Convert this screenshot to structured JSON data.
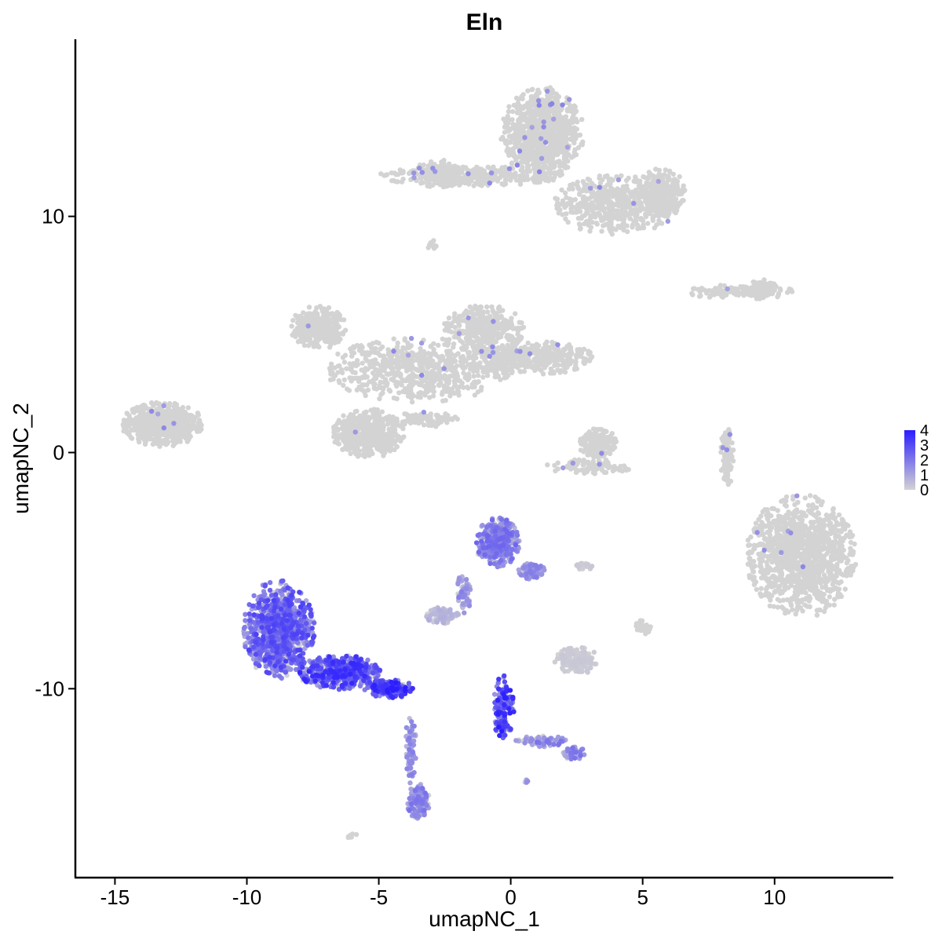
{
  "chart_data": {
    "type": "scatter",
    "title": "Eln",
    "xlabel": "umapNC_1",
    "ylabel": "umapNC_2",
    "xlim": [
      -16.5,
      14.5
    ],
    "ylim": [
      -18.0,
      17.5
    ],
    "x_ticks": [
      -15,
      -10,
      -5,
      0,
      5,
      10
    ],
    "x_tick_labels": [
      "-15",
      "-10",
      "-5",
      "0",
      "5",
      "10"
    ],
    "y_ticks": [
      -10,
      0,
      10
    ],
    "y_tick_labels": [
      "-10",
      "0",
      "10"
    ],
    "grid": false,
    "legend": {
      "placement": "right",
      "type": "colorbar",
      "labels": [
        "4",
        "3",
        "2",
        "1",
        "0"
      ],
      "values": [
        4,
        3,
        2,
        1,
        0
      ],
      "range": [
        0,
        4
      ],
      "low_color": "#d3d3d3",
      "high_color": "#2b1dff"
    },
    "point_color_default": "#d3d3d3",
    "clusters": [
      {
        "cx": 1.2,
        "cy": 13.5,
        "rx": 1.5,
        "ry": 1.9,
        "n": 900,
        "expr": 0.0
      },
      {
        "cx": 4.0,
        "cy": 10.5,
        "rx": 2.3,
        "ry": 1.2,
        "n": 500,
        "expr": 0.0
      },
      {
        "cx": 5.7,
        "cy": 11.0,
        "rx": 0.9,
        "ry": 1.0,
        "n": 250,
        "expr": 0.0
      },
      {
        "cx": -1.5,
        "cy": 11.7,
        "rx": 3.4,
        "ry": 0.4,
        "n": 300,
        "expr": 0.0
      },
      {
        "cx": -2.8,
        "cy": 11.8,
        "rx": 0.8,
        "ry": 0.6,
        "n": 120,
        "expr": 0.0
      },
      {
        "cx": -3.0,
        "cy": 8.8,
        "rx": 0.2,
        "ry": 0.2,
        "n": 10,
        "expr": 0.0
      },
      {
        "cx": 8.7,
        "cy": 6.8,
        "rx": 2.0,
        "ry": 0.3,
        "n": 120,
        "expr": 0.0
      },
      {
        "cx": 9.5,
        "cy": 6.9,
        "rx": 0.6,
        "ry": 0.4,
        "n": 80,
        "expr": 0.0
      },
      {
        "cx": -7.3,
        "cy": 5.3,
        "rx": 1.0,
        "ry": 0.9,
        "n": 300,
        "expr": 0.0
      },
      {
        "cx": -3.5,
        "cy": 3.5,
        "rx": 3.4,
        "ry": 1.3,
        "n": 650,
        "expr": 0.0
      },
      {
        "cx": -1.0,
        "cy": 5.2,
        "rx": 1.5,
        "ry": 1.0,
        "n": 350,
        "expr": 0.0
      },
      {
        "cx": 0.8,
        "cy": 4.0,
        "rx": 2.3,
        "ry": 0.7,
        "n": 400,
        "expr": 0.0
      },
      {
        "cx": -5.4,
        "cy": 0.8,
        "rx": 1.3,
        "ry": 1.0,
        "n": 500,
        "expr": 0.0
      },
      {
        "cx": -3.2,
        "cy": 1.4,
        "rx": 1.2,
        "ry": 0.3,
        "n": 90,
        "expr": 0.0
      },
      {
        "cx": -13.2,
        "cy": 1.2,
        "rx": 1.5,
        "ry": 0.9,
        "n": 550,
        "expr": 0.0
      },
      {
        "cx": 3.3,
        "cy": 0.4,
        "rx": 0.7,
        "ry": 0.6,
        "n": 170,
        "expr": 0.0
      },
      {
        "cx": 3.0,
        "cy": -0.6,
        "rx": 1.6,
        "ry": 0.3,
        "n": 100,
        "expr": 0.0
      },
      {
        "cx": 8.2,
        "cy": -0.2,
        "rx": 0.25,
        "ry": 1.2,
        "n": 80,
        "expr": 0.0
      },
      {
        "cx": 11.0,
        "cy": -4.4,
        "rx": 2.0,
        "ry": 2.5,
        "n": 1100,
        "expr": 0.0
      },
      {
        "cx": -0.5,
        "cy": -3.8,
        "rx": 0.8,
        "ry": 1.0,
        "n": 380,
        "expr": 0.45
      },
      {
        "cx": 0.8,
        "cy": -5.0,
        "rx": 0.5,
        "ry": 0.4,
        "n": 80,
        "expr": 0.35
      },
      {
        "cx": -1.8,
        "cy": -6.0,
        "rx": 0.3,
        "ry": 0.8,
        "n": 60,
        "expr": 0.35
      },
      {
        "cx": -2.6,
        "cy": -6.9,
        "rx": 0.6,
        "ry": 0.35,
        "n": 100,
        "expr": 0.15
      },
      {
        "cx": 2.8,
        "cy": -4.8,
        "rx": 0.4,
        "ry": 0.15,
        "n": 20,
        "expr": 0.05
      },
      {
        "cx": 5.0,
        "cy": -7.4,
        "rx": 0.3,
        "ry": 0.3,
        "n": 30,
        "expr": 0.0
      },
      {
        "cx": 2.5,
        "cy": -8.8,
        "rx": 0.8,
        "ry": 0.6,
        "n": 150,
        "expr": 0.05
      },
      {
        "cx": -8.8,
        "cy": -7.5,
        "rx": 1.3,
        "ry": 2.0,
        "n": 900,
        "expr": 0.6
      },
      {
        "cx": -6.5,
        "cy": -9.3,
        "rx": 1.5,
        "ry": 0.7,
        "n": 500,
        "expr": 0.7
      },
      {
        "cx": -4.6,
        "cy": -10.0,
        "rx": 0.9,
        "ry": 0.4,
        "n": 200,
        "expr": 0.75
      },
      {
        "cx": -3.8,
        "cy": -12.5,
        "rx": 0.2,
        "ry": 1.7,
        "n": 70,
        "expr": 0.35
      },
      {
        "cx": -3.5,
        "cy": -14.8,
        "rx": 0.4,
        "ry": 0.8,
        "n": 130,
        "expr": 0.4
      },
      {
        "cx": -0.3,
        "cy": -10.8,
        "rx": 0.4,
        "ry": 1.3,
        "n": 160,
        "expr": 0.75
      },
      {
        "cx": 1.2,
        "cy": -12.2,
        "rx": 1.0,
        "ry": 0.25,
        "n": 60,
        "expr": 0.4
      },
      {
        "cx": 2.4,
        "cy": -12.7,
        "rx": 0.4,
        "ry": 0.3,
        "n": 50,
        "expr": 0.4
      },
      {
        "cx": 0.6,
        "cy": -13.9,
        "rx": 0.1,
        "ry": 0.1,
        "n": 5,
        "expr": 0.3
      },
      {
        "cx": -6.0,
        "cy": -16.2,
        "rx": 0.2,
        "ry": 0.15,
        "n": 8,
        "expr": 0.0
      }
    ]
  }
}
